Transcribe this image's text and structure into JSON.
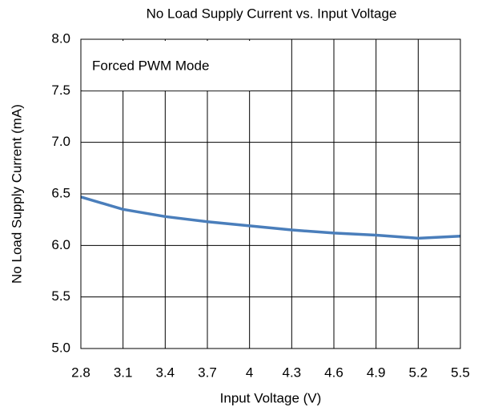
{
  "chart_data": {
    "type": "line",
    "title": "No Load Supply Current vs. Input Voltage",
    "xlabel": "Input Voltage (V)",
    "ylabel": "No Load Supply Current (mA)",
    "annotation": "Forced PWM Mode",
    "x": [
      2.8,
      3.1,
      3.4,
      3.7,
      4.0,
      4.3,
      4.6,
      4.9,
      5.2,
      5.5
    ],
    "series": [
      {
        "name": "Forced PWM Mode",
        "color": "#4a7ebb",
        "values": [
          6.47,
          6.35,
          6.28,
          6.23,
          6.19,
          6.15,
          6.12,
          6.1,
          6.07,
          6.09
        ]
      }
    ],
    "xlim": [
      2.8,
      5.5
    ],
    "xticks": [
      2.8,
      3.1,
      3.4,
      3.7,
      4,
      4.3,
      4.6,
      4.9,
      5.2,
      5.5
    ],
    "ylim": [
      5.0,
      8.0
    ],
    "yticks": [
      {
        "value": 5,
        "label": "5.0"
      },
      5.5,
      {
        "value": 6,
        "label": "6.0"
      },
      6.5,
      {
        "value": 7,
        "label": "7.0"
      },
      7.5,
      {
        "value": 8,
        "label": "8.0"
      }
    ],
    "grid": true
  }
}
